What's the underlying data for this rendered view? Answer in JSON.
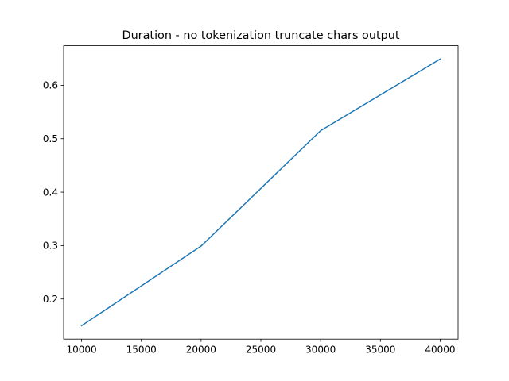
{
  "chart_data": {
    "type": "line",
    "title": "Duration - no tokenization truncate chars output",
    "xlabel": "",
    "ylabel": "",
    "xlim": [
      8500,
      41500
    ],
    "ylim": [
      0.125,
      0.674
    ],
    "x_ticks": [
      10000,
      15000,
      20000,
      25000,
      30000,
      35000,
      40000
    ],
    "y_ticks": [
      0.2,
      0.3,
      0.4,
      0.5,
      0.6
    ],
    "grid": false,
    "series": [
      {
        "color": "#1f77b4",
        "x": [
          10000,
          20000,
          30000,
          40000
        ],
        "y": [
          0.15,
          0.299,
          0.515,
          0.649
        ]
      }
    ]
  }
}
